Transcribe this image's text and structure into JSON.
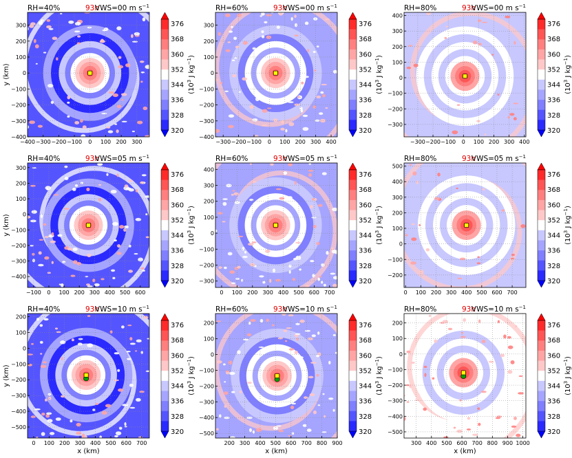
{
  "colors": {
    "scale": [
      "#0000ff",
      "#2a2aff",
      "#5555ff",
      "#7f7fff",
      "#a5a5ff",
      "#c8c8ff",
      "#ffffff",
      "#ffc8c8",
      "#ffa5a5",
      "#ff7f7f",
      "#ff5555",
      "#ff2a2a",
      "#ff0000"
    ],
    "time_label": "#e00000",
    "marker_yellow": "#ffff00",
    "marker_green": "#00a000"
  },
  "chart_data": [
    {
      "type": "heatmap",
      "title_left": "RH=40%",
      "title_time": "93h",
      "title_right": "VWS=00 m s",
      "title_right_sup": "−1",
      "ylabel": "y (km)",
      "xlabel": "",
      "xticks": [
        "−400",
        "−300",
        "−200",
        "−100",
        "0",
        "100",
        "200",
        "300"
      ],
      "yticks": [
        "300",
        "200",
        "100",
        "0",
        "−100",
        "−200",
        "−300",
        "−400"
      ],
      "xlim": [
        -400,
        380
      ],
      "ylim": [
        -400,
        380
      ],
      "center": [
        0,
        0
      ],
      "marker": "yellow",
      "rh": 40,
      "vws": 0,
      "colorbar": {
        "ticks": [
          "376",
          "368",
          "360",
          "352",
          "344",
          "336",
          "328",
          "320"
        ],
        "label": "(10",
        "label_sup": "3",
        "label_unit": " J kg",
        "label_unit_sup": "−1",
        "label_close": ")"
      }
    },
    {
      "type": "heatmap",
      "title_left": "RH=60%",
      "title_time": "93h",
      "title_right": "VWS=00 m s",
      "title_right_sup": "−1",
      "ylabel": "",
      "xlabel": "",
      "xticks": [
        "−300",
        "−200",
        "−100",
        "0",
        "100",
        "200",
        "300",
        "400"
      ],
      "yticks": [
        "300",
        "200",
        "100",
        "0",
        "−100",
        "−200",
        "−300",
        "−400"
      ],
      "xlim": [
        -350,
        440
      ],
      "ylim": [
        -400,
        380
      ],
      "center": [
        40,
        0
      ],
      "marker": "yellow",
      "rh": 60,
      "vws": 0,
      "colorbar": {
        "ticks": [
          "376",
          "368",
          "360",
          "352",
          "344",
          "336",
          "328",
          "320"
        ],
        "label": "(10",
        "label_sup": "3",
        "label_unit": " J kg",
        "label_unit_sup": "−1",
        "label_close": ")"
      }
    },
    {
      "type": "heatmap",
      "title_left": "RH=80%",
      "title_time": "93h",
      "title_right": "VWS=00 m s",
      "title_right_sup": "−1",
      "ylabel": "",
      "xlabel": "",
      "xticks": [
        "−300",
        "−200",
        "−100",
        "0",
        "100",
        "200",
        "300",
        "400"
      ],
      "yticks": [
        "400",
        "300",
        "200",
        "100",
        "0",
        "−100",
        "−200",
        "−300"
      ],
      "xlim": [
        -390,
        410
      ],
      "ylim": [
        -380,
        420
      ],
      "center": [
        10,
        10
      ],
      "marker": "yellow",
      "rh": 80,
      "vws": 0,
      "colorbar": {
        "ticks": [
          "376",
          "368",
          "360",
          "352",
          "344",
          "336",
          "328",
          "320"
        ],
        "label": "(10",
        "label_sup": "3",
        "label_unit": " J kg",
        "label_unit_sup": "−1",
        "label_close": ")"
      }
    },
    {
      "type": "heatmap",
      "title_left": "RH=40%",
      "title_time": "93h",
      "title_right": "VWS=05 m s",
      "title_right_sup": "−1",
      "ylabel": "y (km)",
      "xlabel": "",
      "xticks": [
        "−100",
        "0",
        "100",
        "200",
        "300",
        "400",
        "500",
        "600"
      ],
      "yticks": [
        "300",
        "200",
        "100",
        "0",
        "−100",
        "−200",
        "−300",
        "−400"
      ],
      "xlim": [
        -140,
        660
      ],
      "ylim": [
        -470,
        330
      ],
      "center": [
        260,
        -70
      ],
      "marker": "yellow",
      "rh": 40,
      "vws": 5,
      "colorbar": {
        "ticks": [
          "376",
          "368",
          "360",
          "352",
          "344",
          "336",
          "328",
          "320"
        ],
        "label": "(10",
        "label_sup": "3",
        "label_unit": " J kg",
        "label_unit_sup": "−1",
        "label_close": ")"
      }
    },
    {
      "type": "heatmap",
      "title_left": "RH=60%",
      "title_time": "93h",
      "title_right": "VWS=05 m s",
      "title_right_sup": "−1",
      "ylabel": "",
      "xlabel": "",
      "xticks": [
        "0",
        "100",
        "200",
        "300",
        "400",
        "500",
        "600",
        "700"
      ],
      "yticks": [
        "400",
        "300",
        "200",
        "100",
        "0",
        "−100",
        "−200",
        "−300"
      ],
      "xlim": [
        -40,
        750
      ],
      "ylim": [
        -340,
        440
      ],
      "center": [
        350,
        50
      ],
      "marker": "yellow",
      "rh": 60,
      "vws": 5,
      "colorbar": {
        "ticks": [
          "376",
          "368",
          "360",
          "352",
          "344",
          "336",
          "328",
          "320"
        ],
        "label": "(10",
        "label_sup": "3",
        "label_unit": " J kg",
        "label_unit_sup": "−1",
        "label_close": ")"
      }
    },
    {
      "type": "heatmap",
      "title_left": "RH=80%",
      "title_time": "93h",
      "title_right": "VWS=05 m s",
      "title_right_sup": "−1",
      "ylabel": "",
      "xlabel": "",
      "xticks": [
        "0",
        "100",
        "200",
        "300",
        "400",
        "500",
        "600",
        "700"
      ],
      "yticks": [
        "500",
        "400",
        "300",
        "200",
        "100",
        "0",
        "−100",
        "−200"
      ],
      "xlim": [
        -10,
        790
      ],
      "ylim": [
        -280,
        520
      ],
      "center": [
        400,
        120
      ],
      "marker": "yellow",
      "rh": 80,
      "vws": 5,
      "colorbar": {
        "ticks": [
          "376",
          "368",
          "360",
          "352",
          "344",
          "336",
          "328",
          "320"
        ],
        "label": "(10",
        "label_sup": "3",
        "label_unit": " J kg",
        "label_unit_sup": "−1",
        "label_close": ")"
      }
    },
    {
      "type": "heatmap",
      "title_left": "RH=40%",
      "title_time": "93h",
      "title_right": "VWS=10 m s",
      "title_right_sup": "−1",
      "ylabel": "y (km)",
      "xlabel": "x (km)",
      "xticks": [
        "0",
        "100",
        "200",
        "300",
        "400",
        "500",
        "600",
        "700"
      ],
      "yticks": [
        "200",
        "100",
        "0",
        "−100",
        "−200",
        "−300",
        "−400",
        "−500"
      ],
      "xlim": [
        -40,
        750
      ],
      "ylim": [
        -570,
        220
      ],
      "center": [
        340,
        -170
      ],
      "marker": "green+yellow",
      "rh": 40,
      "vws": 10,
      "colorbar": {
        "ticks": [
          "376",
          "368",
          "360",
          "352",
          "344",
          "336",
          "328",
          "320"
        ],
        "label": "(10",
        "label_sup": "3",
        "label_unit": " J kg",
        "label_unit_sup": "−1",
        "label_close": ")"
      }
    },
    {
      "type": "heatmap",
      "title_left": "RH=60%",
      "title_time": "93h",
      "title_right": "VWS=10 m s",
      "title_right_sup": "−1",
      "ylabel": "",
      "xlabel": "x (km)",
      "xticks": [
        "200",
        "300",
        "400",
        "500",
        "600",
        "700",
        "800",
        "900"
      ],
      "yticks": [
        "200",
        "100",
        "0",
        "−100",
        "−200",
        "−300",
        "−400",
        "−500"
      ],
      "xlim": [
        110,
        900
      ],
      "ylim": [
        -530,
        260
      ],
      "center": [
        510,
        -135
      ],
      "marker": "green+yellow",
      "rh": 60,
      "vws": 10,
      "colorbar": {
        "ticks": [
          "376",
          "368",
          "360",
          "352",
          "344",
          "336",
          "328",
          "320"
        ],
        "label": "(10",
        "label_sup": "3",
        "label_unit": " J kg",
        "label_unit_sup": "−1",
        "label_close": ")"
      }
    },
    {
      "type": "heatmap",
      "title_left": "RH=80%",
      "title_time": "93h",
      "title_right": "VWS=10 m s",
      "title_right_sup": "−1",
      "ylabel": "",
      "xlabel": "x (km)",
      "xticks": [
        "300",
        "400",
        "500",
        "600",
        "700",
        "800",
        "900",
        "1000"
      ],
      "yticks": [
        "200",
        "100",
        "0",
        "−100",
        "−200",
        "−300",
        "−400",
        "−500"
      ],
      "xlim": [
        220,
        1020
      ],
      "ylim": [
        -540,
        260
      ],
      "center": [
        610,
        -120
      ],
      "marker": "green+yellow",
      "rh": 80,
      "vws": 10,
      "colorbar": {
        "ticks": [
          "376",
          "368",
          "360",
          "352",
          "344",
          "336",
          "328",
          "320"
        ],
        "label": "(10",
        "label_sup": "3",
        "label_unit": " J kg",
        "label_unit_sup": "−1",
        "label_close": ")"
      }
    }
  ]
}
